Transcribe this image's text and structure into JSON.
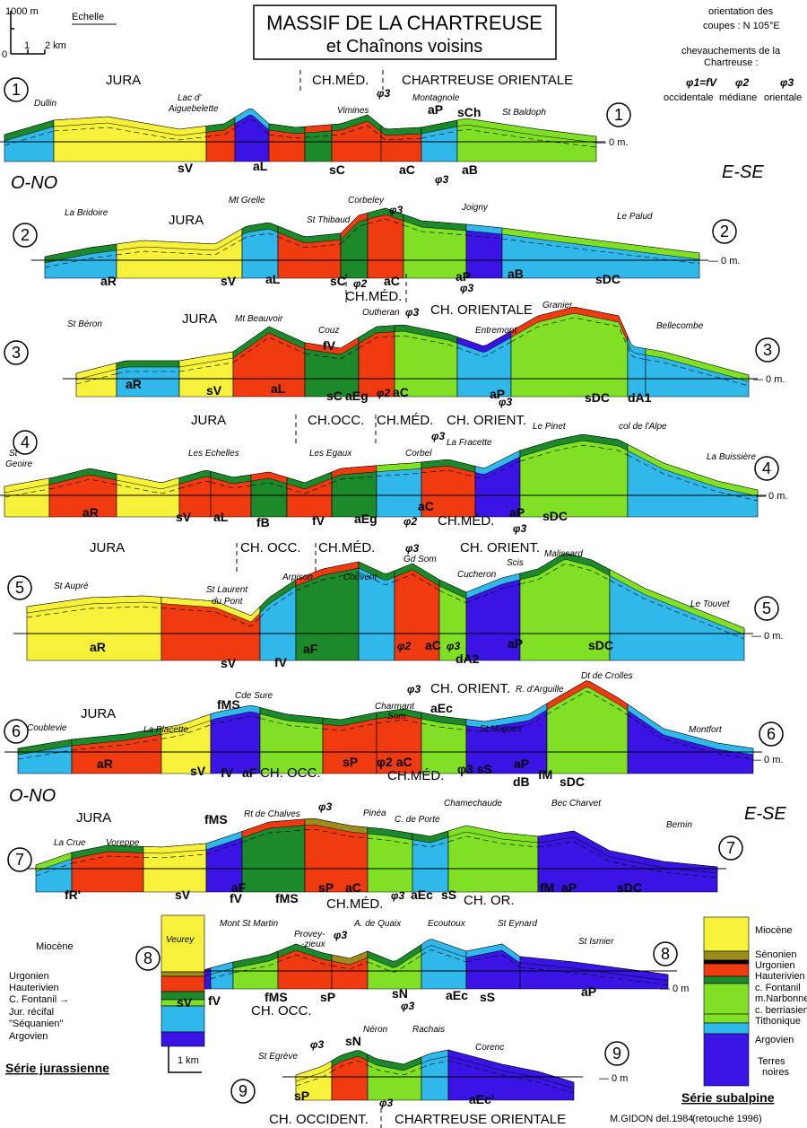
{
  "header": {
    "scale_top": "1000 m",
    "scale_title": "Echelle",
    "scale_zero": "0",
    "scale_1": "1",
    "scale_2": "2 km",
    "title_1": "MASSIF DE LA CHARTREUSE",
    "title_2": "et Chaînons voisins",
    "orientation_1": "orientation des",
    "orientation_2": "coupes : N 105°E",
    "thrusts_1": "chevauchements de la",
    "thrusts_2": "Chartreuse :",
    "phi1": "φ1=fV",
    "phi2": "φ2",
    "phi3": "φ3",
    "phi1_desc": "occidentale",
    "phi2_desc": "médiane",
    "phi3_desc": "orientale"
  },
  "directions": {
    "west": "O-NO",
    "east": "E-SE"
  },
  "sections": [
    {
      "number": "1",
      "zero": "— 0 m.",
      "labels": [
        "JURA",
        "CH.MÉD.",
        "CHARTREUSE  ORIENTALE",
        "Dullin",
        "Lac d'",
        "Aiguebelette",
        "Vimines",
        "φ3",
        "Montagnole",
        "aP",
        "sCh",
        "St Baldoph",
        "sV",
        "aL",
        "sC",
        "aC",
        "aB",
        "φ3"
      ]
    },
    {
      "number": "2",
      "zero": "— 0 m.",
      "labels": [
        "JURA",
        "La Bridoire",
        "Mt Grelle",
        "St Thibaud",
        "Corbeley",
        "φ3",
        "Joigny",
        "Le Palud",
        "aR",
        "sV",
        "aL",
        "sC",
        "φ2",
        "aC",
        "aP",
        "φ3",
        "aB",
        "sDC",
        "CH.MÉD."
      ]
    },
    {
      "number": "3",
      "zero": "— 0 m.",
      "labels": [
        "St Béron",
        "JURA",
        "Mt Beauvoir",
        "Couz",
        "fV",
        "Outheran",
        "φ3",
        "CH. ORIENTALE",
        "Granier",
        "Entremont",
        "Bellecombe",
        "aR",
        "sV",
        "aL",
        "sC",
        "aEg",
        "φ2",
        "aC",
        "aP",
        "φ3",
        "sDC",
        "dA1"
      ]
    },
    {
      "number": "4",
      "zero": "— 0 m.",
      "labels": [
        "JURA",
        "CH.OCC.",
        "CH.MÉD.",
        "CH. ORIENT.",
        "St",
        "Geoire",
        "Les Echelles",
        "Les Egaux",
        "Corbel",
        "φ3",
        "La Fracette",
        "Le Pinet",
        "col de l'Alpe",
        "La Buissière",
        "aR",
        "sV",
        "aL",
        "fB",
        "fV",
        "aEg",
        "aC",
        "φ2",
        "CH.MÉD.",
        "aP",
        "φ3",
        "sDC"
      ]
    },
    {
      "number": "5",
      "zero": "— 0 m.",
      "labels": [
        "JURA",
        "CH. OCC.",
        "CH.MÉD.",
        "φ3",
        "Gd Som",
        "CH. ORIENT.",
        "St Aupré",
        "St Laurent",
        "du Pont",
        "Arpison",
        "Couvent",
        "Cucheron",
        "Scis",
        "Malissard",
        "Le Touvet",
        "aR",
        "sV",
        "aF",
        "fV",
        "φ2",
        "aC",
        "φ3",
        "dA2",
        "aP",
        "sDC"
      ]
    },
    {
      "number": "6",
      "zero": "— 0 m.",
      "labels": [
        "JURA",
        "Coublevie",
        "La Placette",
        "fMS",
        "Cde Sure",
        "Charmant",
        "Som",
        "φ3",
        "CH. ORIENT.",
        "aEc",
        "St Hugues",
        "R. d'Arguille",
        "Dt de Crolles",
        "Montfort",
        "aR",
        "sV",
        "fV",
        "aF",
        "CH. OCC.",
        "sP",
        "φ2 aC",
        "CH.MÉD.",
        "φ3 sS",
        "aP",
        "dB",
        "fM",
        "sDC"
      ]
    },
    {
      "number": "7",
      "zero": "",
      "labels": [
        "JURA",
        "fMS",
        "Rt de Chalves",
        "φ3",
        "Pinéa",
        "C. de Porte",
        "Chamechaude",
        "Bec Charvet",
        "Bernin",
        "La Crue",
        "Voreppe",
        "fR'",
        "sV",
        "aF",
        "fV",
        "fMS",
        "sP",
        "aC",
        "φ3",
        "aEc",
        "sS",
        "CH.MÉD.",
        "CH. OR.",
        "fM",
        "aP",
        "sDC"
      ]
    },
    {
      "number": "8",
      "zero": "— 0 m",
      "labels": [
        "Mont St Martin",
        "Provey-",
        "-zieux",
        "φ3",
        "A. de Quaix",
        "Ecoutoux",
        "St Eynard",
        "St Ismier",
        "Veurey",
        "sV",
        "fV",
        "fMS",
        "CH. OCC.",
        "sP",
        "sN",
        "φ3",
        "aEc",
        "sS",
        "aP"
      ]
    },
    {
      "number": "9",
      "zero": "— 0 m",
      "labels": [
        "St Egrève",
        "φ3",
        "sN",
        "Néron",
        "Rachais",
        "Corenc",
        "sP",
        "φ3",
        "aEc'"
      ]
    }
  ],
  "bottom_regions": {
    "west": "CH. OCCIDENT.",
    "east": "CHARTREUSE  ORIENTALE"
  },
  "legend_left": {
    "title": "Série  jurassienne",
    "items": [
      "Miocène",
      "Urgonien",
      "Hauterivien",
      "C. Fontanil →",
      "Jur. récifal",
      "\"Séquanien\"",
      "Argovien"
    ]
  },
  "vertical_scale": "1 km",
  "legend_right": {
    "title": "Série  subalpine",
    "items": [
      "Miocène",
      "Sénonien",
      "Urgonien",
      "Hauterivien",
      "c. Fontanil",
      "m.Narbonne",
      "c. berriasien",
      "Tithonique",
      "Argovien",
      "Terres",
      "noires"
    ]
  },
  "credit": "M.GIDON del.1984",
  "retouch": "(retouché 1996)",
  "colors": {
    "miocene": "#f6f23a",
    "urgonien": "#f03a10",
    "hauterivien": "#1c8a2a",
    "berriasien": "#80e024",
    "tithonique": "#30b8ea",
    "argovien": "#3a14e4",
    "senonien": "#9c8c1c",
    "jur_recifal": "#30b8ea"
  }
}
